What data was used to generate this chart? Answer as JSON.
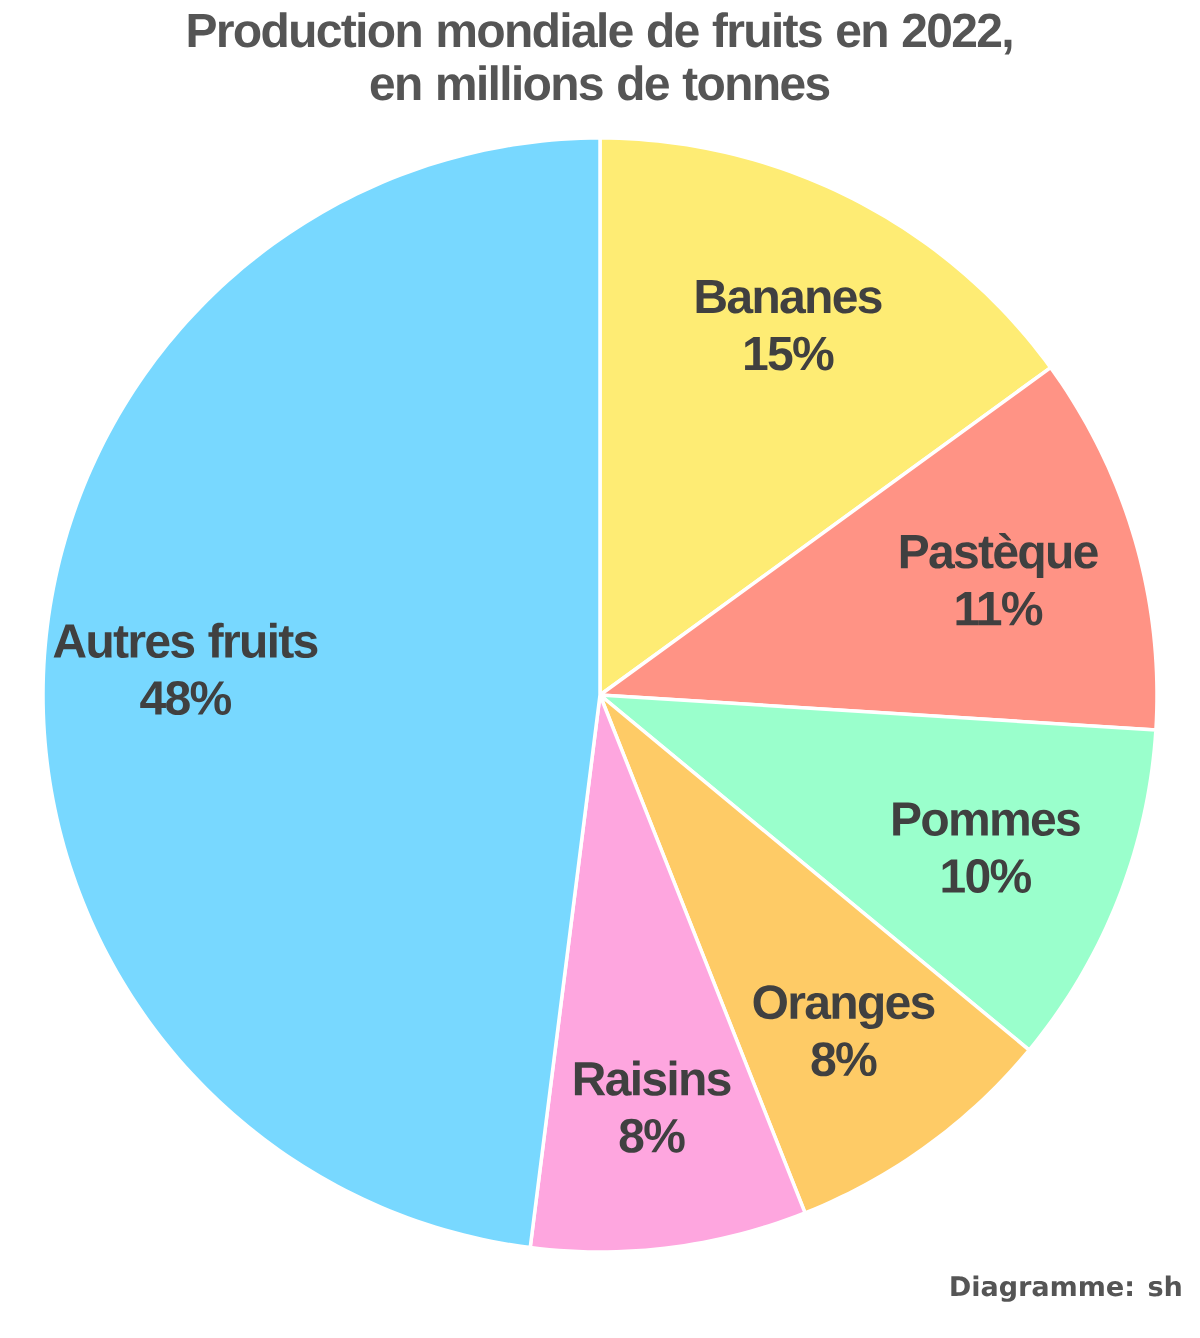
{
  "chart_data": {
    "type": "pie",
    "title": "Production mondiale de fruits en 2022,",
    "subtitle": "en millions de tonnes",
    "categories": [
      "Bananes",
      "Pastèque",
      "Pommes",
      "Oranges",
      "Raisins",
      "Autres fruits"
    ],
    "values": [
      15,
      11,
      10,
      8,
      8,
      48
    ],
    "value_labels": [
      "15%",
      "11%",
      "10%",
      "8%",
      "8%",
      "48%"
    ],
    "colors": [
      "#feec74",
      "#ff9385",
      "#9affcc",
      "#fecb66",
      "#fea6df",
      "#78d8ff"
    ],
    "annotations": [
      "Diagramme: sh"
    ]
  }
}
